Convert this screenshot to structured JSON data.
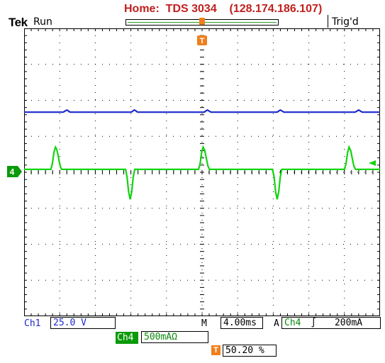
{
  "header": {
    "title": "Home:  TDS 3034    (128.174.186.107)",
    "brand": "Tek",
    "run_state": "Run",
    "trigger_state": "Trig'd"
  },
  "markers": {
    "trigger_marker": "T",
    "ch4_marker": "4"
  },
  "status": {
    "ch1_label": "Ch1",
    "ch1_scale": "25.0 V",
    "timebase_prefix": "M",
    "timebase": "4.00ms",
    "trigger_mode": "A",
    "trigger_source": "Ch4",
    "trigger_slope_icon": "rising-edge-icon",
    "trigger_level": "200mA",
    "ch4_label": "Ch4",
    "ch4_scale": "500mAΩ",
    "trigger_position_icon": "T",
    "trigger_position": "50.20 %"
  },
  "colors": {
    "ch1": "#1d29c9",
    "ch4": "#12d40f",
    "grid": "#000000",
    "header": "#c0201e",
    "trigger": "#f07f1c"
  },
  "chart_data": {
    "type": "line",
    "grid_divisions": {
      "x": 10,
      "y": 8
    },
    "series": [
      {
        "name": "Ch1",
        "color": "#1d29c9",
        "unit_per_div": "25.0 V",
        "y_div": [
          [
            0,
            2.33
          ],
          [
            1.1,
            2.33
          ],
          [
            1.2,
            2.27
          ],
          [
            1.3,
            2.33
          ],
          [
            3.0,
            2.33
          ],
          [
            3.1,
            2.27
          ],
          [
            3.2,
            2.33
          ],
          [
            5.05,
            2.33
          ],
          [
            5.15,
            2.27
          ],
          [
            5.25,
            2.33
          ],
          [
            7.1,
            2.33
          ],
          [
            7.2,
            2.27
          ],
          [
            7.3,
            2.33
          ],
          [
            9.3,
            2.33
          ],
          [
            9.4,
            2.27
          ],
          [
            9.5,
            2.33
          ],
          [
            10,
            2.33
          ]
        ]
      },
      {
        "name": "Ch4",
        "color": "#12d40f",
        "unit_per_div": "500mAΩ",
        "y_div": [
          [
            0,
            3.92
          ],
          [
            0.75,
            3.92
          ],
          [
            0.88,
            3.3
          ],
          [
            1.06,
            3.92
          ],
          [
            2.85,
            3.92
          ],
          [
            2.98,
            4.75
          ],
          [
            3.11,
            3.92
          ],
          [
            4.9,
            3.92
          ],
          [
            5.03,
            3.3
          ],
          [
            5.21,
            3.92
          ],
          [
            6.98,
            3.92
          ],
          [
            7.11,
            4.75
          ],
          [
            7.24,
            3.92
          ],
          [
            9.0,
            3.92
          ],
          [
            9.13,
            3.3
          ],
          [
            9.31,
            3.92
          ],
          [
            10,
            3.92
          ]
        ]
      }
    ]
  }
}
